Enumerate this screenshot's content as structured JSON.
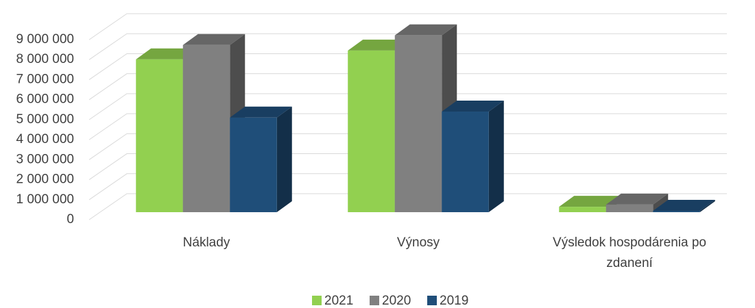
{
  "chart_data": {
    "type": "bar3d",
    "categories": [
      "Náklady",
      "Výnosy",
      "Výsledok hospodárenia po zdanení"
    ],
    "series": [
      {
        "name": "2021",
        "color": "#92d050",
        "values": [
          7640000,
          8080000,
          270000
        ]
      },
      {
        "name": "2020",
        "color": "#808080",
        "values": [
          8360000,
          8840000,
          380000
        ]
      },
      {
        "name": "2019",
        "color": "#1f4e79",
        "values": [
          4730000,
          5030000,
          70000
        ]
      }
    ],
    "ylim": [
      0,
      9000000
    ],
    "yticks": [
      0,
      {
        "value": 1000000,
        "label": "1 000 000"
      },
      {
        "value": 2000000,
        "label": "2 000 000"
      },
      {
        "value": 3000000,
        "label": "3 000 000"
      },
      {
        "value": 4000000,
        "label": "4 000 000"
      },
      {
        "value": 5000000,
        "label": "5 000 000"
      },
      {
        "value": 6000000,
        "label": "6 000 000"
      },
      {
        "value": 7000000,
        "label": "7 000 000"
      },
      {
        "value": 8000000,
        "label": "8 000 000"
      },
      {
        "value": 9000000,
        "label": "9 000 000"
      }
    ],
    "grid": true,
    "legend": "bottom"
  }
}
